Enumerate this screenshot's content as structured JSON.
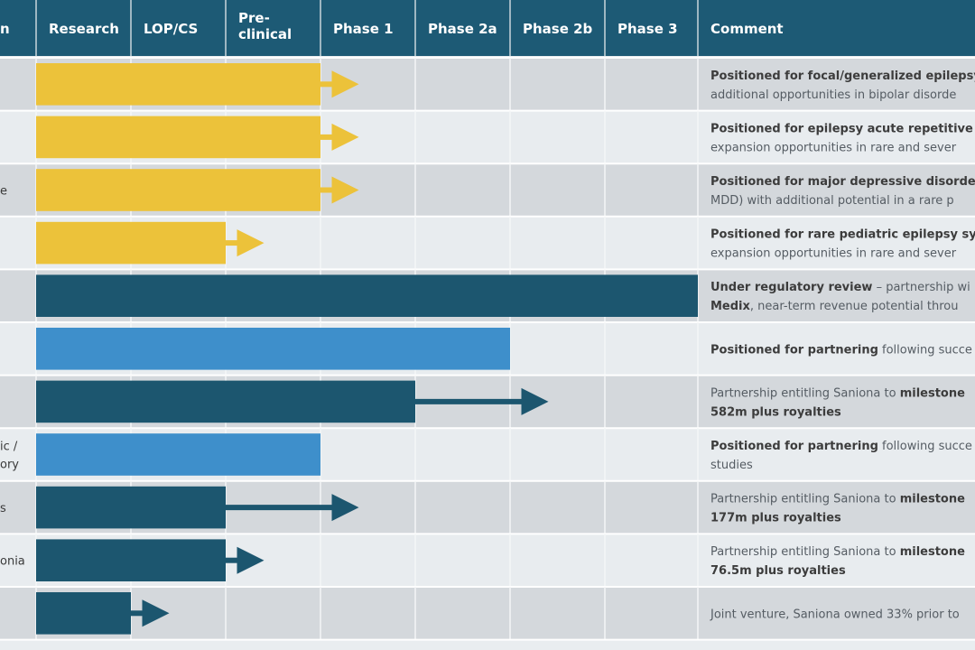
{
  "chart_data": {
    "type": "bar",
    "title": "",
    "columns": [
      "Research",
      "LOP/CS",
      "Pre-\nclinical",
      "Phase 1",
      "Phase 2a",
      "Phase 2b",
      "Phase 3",
      "Comment"
    ],
    "first_column_partial": "n",
    "colors": {
      "header": "#1d5a75",
      "yellow": "#ecc23a",
      "dark": "#1c566f",
      "light": "#3e8fcb",
      "row_a": "#d4d8dc",
      "row_b": "#e8ecef"
    },
    "rows": [
      {
        "label": "",
        "color": "yellow",
        "bar_end": "Pre-clinical",
        "arrow_to": "Phase 1",
        "arrow_style": "solid",
        "comment": [
          [
            {
              "t": "Positioned for focal/generalized epilepsy",
              "b": true
            }
          ],
          [
            {
              "t": "additional opportunities in bipolar disorde",
              "b": false
            }
          ]
        ]
      },
      {
        "label": "",
        "color": "yellow",
        "bar_end": "Pre-clinical",
        "arrow_to": "Phase 1",
        "arrow_style": "solid",
        "comment": [
          [
            {
              "t": "Positioned for epilepsy acute repetitive s",
              "b": true
            }
          ],
          [
            {
              "t": "expansion opportunities in rare and sever",
              "b": false
            }
          ]
        ]
      },
      {
        "label": "e",
        "color": "yellow",
        "bar_end": "Pre-clinical",
        "arrow_to": "Phase 1",
        "arrow_style": "solid",
        "comment": [
          [
            {
              "t": "Positioned for major depressive disorder",
              "b": true
            }
          ],
          [
            {
              "t": "MDD) with additional potential in a rare p",
              "b": false
            }
          ]
        ]
      },
      {
        "label": "",
        "color": "yellow",
        "bar_end": "LOP/CS",
        "arrow_to": "Pre-clinical",
        "arrow_style": "dashed",
        "comment": [
          [
            {
              "t": "Positioned for rare pediatric epilepsy syn",
              "b": true
            }
          ],
          [
            {
              "t": "expansion opportunities in rare and sever",
              "b": false
            }
          ]
        ]
      },
      {
        "label": "",
        "color": "dark",
        "bar_end": "Phase 3",
        "arrow_to": null,
        "arrow_style": "none",
        "comment": [
          [
            {
              "t": "Under regulatory review",
              "b": true
            },
            {
              "t": " – partnership wi",
              "b": false
            }
          ],
          [
            {
              "t": "Medix",
              "b": true
            },
            {
              "t": ", near-term revenue potential throu",
              "b": false
            }
          ]
        ]
      },
      {
        "label": "",
        "color": "light",
        "bar_end": "Phase 2a",
        "arrow_to": null,
        "arrow_style": "none",
        "comment": [
          [
            {
              "t": "Positioned for partnering",
              "b": true
            },
            {
              "t": " following succe",
              "b": false
            }
          ]
        ]
      },
      {
        "label": "",
        "color": "dark",
        "bar_end": "Phase 1",
        "arrow_to": "Phase 2b",
        "arrow_style": "solid",
        "comment": [
          [
            {
              "t": "Partnership entitling Saniona to ",
              "b": false
            },
            {
              "t": "milestone",
              "b": true
            }
          ],
          [
            {
              "t": "582m plus royalties",
              "b": true
            }
          ]
        ]
      },
      {
        "label": "ic /\nory",
        "color": "light",
        "bar_end": "Pre-clinical",
        "arrow_to": null,
        "arrow_style": "none",
        "comment": [
          [
            {
              "t": "Positioned for partnering",
              "b": true
            },
            {
              "t": " following succe",
              "b": false
            }
          ],
          [
            {
              "t": "studies",
              "b": false
            }
          ]
        ]
      },
      {
        "label": "s",
        "color": "dark",
        "bar_end": "LOP/CS",
        "arrow_to": "Phase 1",
        "arrow_style": "solid",
        "comment": [
          [
            {
              "t": "Partnership entitling Saniona to ",
              "b": false
            },
            {
              "t": "milestone",
              "b": true
            }
          ],
          [
            {
              "t": "177m plus royalties",
              "b": true
            }
          ]
        ]
      },
      {
        "label": "onia",
        "color": "dark",
        "bar_end": "LOP/CS",
        "arrow_to": "Pre-clinical",
        "arrow_style": "solid",
        "comment": [
          [
            {
              "t": "Partnership entitling Saniona to ",
              "b": false
            },
            {
              "t": "milestone",
              "b": true
            }
          ],
          [
            {
              "t": "76.5m plus royalties",
              "b": true
            }
          ]
        ]
      },
      {
        "label": "",
        "color": "dark",
        "bar_end": "Research",
        "arrow_to": "LOP/CS",
        "arrow_style": "solid",
        "comment": [
          [
            {
              "t": "Joint venture, Saniona owned 33% prior to",
              "b": false
            }
          ]
        ]
      }
    ]
  }
}
